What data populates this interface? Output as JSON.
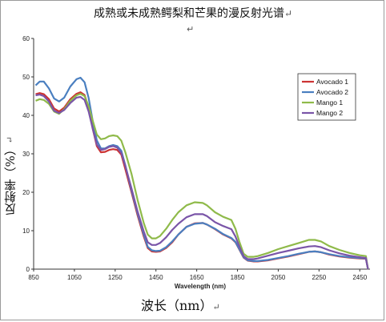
{
  "title": "成熟或未成熟鳄梨和芒果的漫反射光谱",
  "x_title": "波长（nm）",
  "y_title": "反射率（%）",
  "para_mark": "↵",
  "colors": {
    "Avocado 1": "#cc3333",
    "Avocado 2": "#4a7fc0",
    "Mango 1": "#8fba4a",
    "Mango 2": "#7a55a8"
  },
  "chart_data": {
    "type": "line",
    "title": "",
    "xlabel": "Wavelength (nm)",
    "ylabel": "",
    "xlim": [
      850,
      2500
    ],
    "ylim": [
      0,
      60
    ],
    "xticks": [
      850,
      1050,
      1250,
      1450,
      1650,
      1850,
      2050,
      2250,
      2450
    ],
    "yticks": [
      0,
      10,
      20,
      30,
      40,
      50,
      60
    ],
    "grid": false,
    "legend_position": "upper-right",
    "series": [
      {
        "name": "Avocado 1",
        "x": [
          860,
          880,
          900,
          925,
          950,
          975,
          1000,
          1030,
          1060,
          1080,
          1100,
          1120,
          1140,
          1160,
          1180,
          1200,
          1220,
          1240,
          1260,
          1280,
          1300,
          1330,
          1360,
          1390,
          1410,
          1430,
          1450,
          1470,
          1500,
          1530,
          1560,
          1600,
          1640,
          1680,
          1700,
          1740,
          1780,
          1820,
          1840,
          1860,
          1880,
          1900,
          1930,
          1950,
          2000,
          2050,
          2100,
          2150,
          2200,
          2230,
          2260,
          2300,
          2350,
          2400,
          2450,
          2480,
          2490
        ],
        "y": [
          45.5,
          45.8,
          45.5,
          44.2,
          41.8,
          41.0,
          42.0,
          44.2,
          45.6,
          46.0,
          45.3,
          42.0,
          36.5,
          32.0,
          30.4,
          30.5,
          31.0,
          31.2,
          31.0,
          29.8,
          26.0,
          20.0,
          14.0,
          8.5,
          5.5,
          4.6,
          4.5,
          4.6,
          5.5,
          7.0,
          9.0,
          11.0,
          11.9,
          12.0,
          11.6,
          10.4,
          9.0,
          8.0,
          7.0,
          5.0,
          3.0,
          2.2,
          2.0,
          2.0,
          2.3,
          2.8,
          3.3,
          3.9,
          4.5,
          4.6,
          4.4,
          3.8,
          3.3,
          3.0,
          2.8,
          2.7,
          0.0
        ]
      },
      {
        "name": "Avocado 2",
        "x": [
          860,
          880,
          900,
          925,
          950,
          975,
          1000,
          1030,
          1060,
          1080,
          1100,
          1120,
          1140,
          1160,
          1180,
          1200,
          1220,
          1240,
          1260,
          1280,
          1300,
          1330,
          1360,
          1390,
          1410,
          1430,
          1450,
          1470,
          1500,
          1530,
          1560,
          1600,
          1640,
          1680,
          1700,
          1740,
          1780,
          1820,
          1840,
          1860,
          1880,
          1900,
          1930,
          1950,
          2000,
          2050,
          2100,
          2150,
          2200,
          2230,
          2260,
          2300,
          2350,
          2400,
          2450,
          2480,
          2490
        ],
        "y": [
          47.8,
          48.8,
          48.8,
          47.0,
          44.4,
          43.6,
          44.6,
          47.5,
          49.4,
          49.8,
          48.6,
          44.5,
          38.5,
          33.5,
          31.4,
          31.4,
          32.0,
          32.3,
          32.0,
          30.8,
          27.0,
          20.5,
          14.5,
          9.0,
          5.8,
          4.9,
          4.7,
          4.8,
          5.7,
          7.2,
          9.0,
          11.0,
          11.8,
          12.0,
          11.6,
          10.5,
          9.1,
          8.1,
          7.1,
          5.1,
          3.1,
          2.3,
          2.1,
          2.1,
          2.4,
          2.9,
          3.4,
          4.0,
          4.5,
          4.6,
          4.4,
          3.9,
          3.4,
          3.1,
          2.9,
          2.8,
          0.0
        ]
      },
      {
        "name": "Mango 1",
        "x": [
          860,
          880,
          900,
          925,
          950,
          975,
          1000,
          1030,
          1060,
          1080,
          1100,
          1120,
          1140,
          1160,
          1180,
          1200,
          1220,
          1240,
          1260,
          1280,
          1300,
          1330,
          1360,
          1390,
          1410,
          1430,
          1450,
          1470,
          1500,
          1530,
          1560,
          1600,
          1640,
          1680,
          1700,
          1740,
          1780,
          1820,
          1840,
          1860,
          1880,
          1900,
          1930,
          1950,
          2000,
          2050,
          2100,
          2150,
          2200,
          2230,
          2260,
          2300,
          2350,
          2400,
          2450,
          2480,
          2490
        ],
        "y": [
          43.8,
          44.2,
          44.0,
          43.0,
          41.0,
          40.4,
          41.6,
          43.8,
          45.2,
          45.6,
          45.0,
          42.4,
          38.6,
          35.0,
          33.8,
          34.0,
          34.6,
          34.8,
          34.6,
          33.4,
          30.4,
          24.8,
          18.0,
          12.0,
          9.0,
          8.0,
          8.0,
          8.6,
          10.5,
          12.8,
          14.8,
          16.6,
          17.4,
          17.2,
          16.6,
          14.8,
          13.6,
          12.8,
          10.5,
          7.0,
          4.0,
          3.2,
          3.2,
          3.4,
          4.2,
          5.2,
          6.0,
          6.8,
          7.6,
          7.6,
          7.2,
          6.0,
          5.0,
          4.2,
          3.6,
          3.4,
          0.0
        ]
      },
      {
        "name": "Mango 2",
        "x": [
          860,
          880,
          900,
          925,
          950,
          975,
          1000,
          1030,
          1060,
          1080,
          1100,
          1120,
          1140,
          1160,
          1180,
          1200,
          1220,
          1240,
          1260,
          1280,
          1300,
          1330,
          1360,
          1390,
          1410,
          1430,
          1450,
          1470,
          1500,
          1530,
          1560,
          1600,
          1640,
          1680,
          1700,
          1740,
          1780,
          1820,
          1840,
          1860,
          1880,
          1900,
          1930,
          1950,
          2000,
          2050,
          2100,
          2150,
          2200,
          2230,
          2260,
          2300,
          2350,
          2400,
          2450,
          2480,
          2490
        ],
        "y": [
          45.2,
          45.4,
          45.0,
          43.6,
          41.2,
          40.6,
          41.4,
          43.2,
          44.6,
          44.8,
          44.0,
          41.0,
          36.5,
          32.4,
          31.0,
          31.2,
          31.8,
          32.0,
          31.6,
          30.2,
          26.8,
          21.0,
          15.0,
          9.8,
          7.0,
          6.3,
          6.3,
          6.8,
          8.3,
          10.2,
          11.8,
          13.5,
          14.3,
          14.3,
          13.8,
          12.2,
          11.2,
          10.4,
          8.5,
          5.8,
          3.4,
          2.6,
          2.6,
          2.8,
          3.5,
          4.2,
          4.8,
          5.4,
          5.9,
          6.0,
          5.7,
          4.9,
          4.1,
          3.5,
          3.1,
          2.9,
          0.0
        ]
      }
    ]
  }
}
